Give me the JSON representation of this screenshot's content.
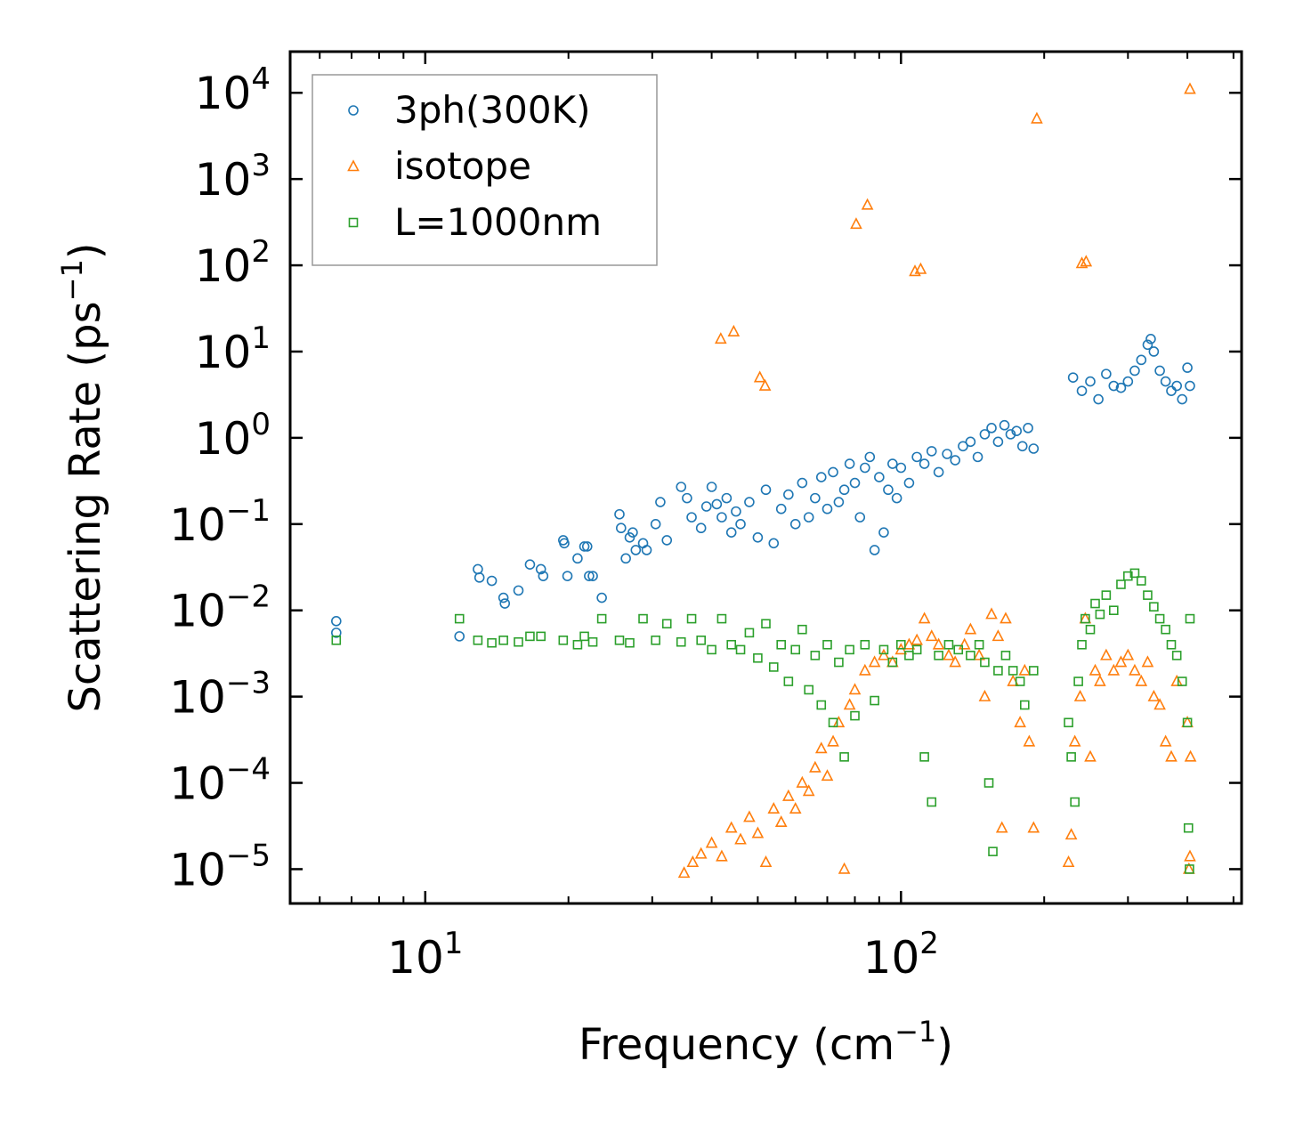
{
  "chart_data": {
    "type": "scatter",
    "title": "",
    "xlabel": {
      "text": "Frequency (cm",
      "sup": "−1",
      "close": ")"
    },
    "ylabel": {
      "text": "Scattering Rate (ps",
      "sup": "−1",
      "close": ")"
    },
    "xscale": "log",
    "yscale": "log",
    "xlim": [
      5.2,
      520
    ],
    "ylim": [
      4e-06,
      30000.0
    ],
    "x_ticks": [
      {
        "base": "10",
        "exp": "1",
        "value": 10
      },
      {
        "base": "10",
        "exp": "2",
        "value": 100
      }
    ],
    "y_ticks": [
      {
        "base": "10",
        "exp": "−5",
        "value": 1e-05
      },
      {
        "base": "10",
        "exp": "−4",
        "value": 0.0001
      },
      {
        "base": "10",
        "exp": "−3",
        "value": 0.001
      },
      {
        "base": "10",
        "exp": "−2",
        "value": 0.01
      },
      {
        "base": "10",
        "exp": "−1",
        "value": 0.1
      },
      {
        "base": "10",
        "exp": "0",
        "value": 1
      },
      {
        "base": "10",
        "exp": "1",
        "value": 10
      },
      {
        "base": "10",
        "exp": "2",
        "value": 100
      },
      {
        "base": "10",
        "exp": "3",
        "value": 1000
      },
      {
        "base": "10",
        "exp": "4",
        "value": 10000
      }
    ],
    "legend_position": "top-left",
    "series": [
      {
        "name": "3ph(300K)",
        "marker": "circle",
        "color": "#1f77b4",
        "points": [
          [
            6.5,
            0.0075
          ],
          [
            6.5,
            0.0055
          ],
          [
            11.8,
            0.005
          ],
          [
            12.9,
            0.03
          ],
          [
            13.0,
            0.024
          ],
          [
            13.8,
            0.022
          ],
          [
            14.6,
            0.014
          ],
          [
            14.7,
            0.012
          ],
          [
            15.7,
            0.017
          ],
          [
            16.6,
            0.034
          ],
          [
            17.5,
            0.03
          ],
          [
            17.7,
            0.025
          ],
          [
            19.5,
            0.065
          ],
          [
            19.6,
            0.06
          ],
          [
            19.9,
            0.025
          ],
          [
            20.9,
            0.04
          ],
          [
            21.6,
            0.055
          ],
          [
            21.9,
            0.055
          ],
          [
            22.1,
            0.025
          ],
          [
            22.5,
            0.025
          ],
          [
            23.5,
            0.014
          ],
          [
            25.6,
            0.13
          ],
          [
            25.8,
            0.09
          ],
          [
            26.4,
            0.04
          ],
          [
            26.9,
            0.07
          ],
          [
            27.3,
            0.08
          ],
          [
            27.7,
            0.05
          ],
          [
            28.7,
            0.06
          ],
          [
            29.2,
            0.05
          ],
          [
            30.5,
            0.1
          ],
          [
            31.2,
            0.18
          ],
          [
            32.2,
            0.065
          ],
          [
            34.5,
            0.27
          ],
          [
            35.5,
            0.2
          ],
          [
            36.3,
            0.12
          ],
          [
            38.0,
            0.09
          ],
          [
            39.0,
            0.16
          ],
          [
            40.0,
            0.27
          ],
          [
            41.0,
            0.17
          ],
          [
            42.0,
            0.12
          ],
          [
            43.0,
            0.2
          ],
          [
            44.0,
            0.08
          ],
          [
            45.0,
            0.14
          ],
          [
            46.0,
            0.1
          ],
          [
            48.0,
            0.18
          ],
          [
            50.0,
            0.07
          ],
          [
            52.0,
            0.25
          ],
          [
            54.0,
            0.06
          ],
          [
            56.0,
            0.15
          ],
          [
            58.0,
            0.22
          ],
          [
            60.0,
            0.1
          ],
          [
            62.0,
            0.3
          ],
          [
            64.0,
            0.12
          ],
          [
            66.0,
            0.2
          ],
          [
            68.0,
            0.35
          ],
          [
            70.0,
            0.15
          ],
          [
            72.0,
            0.4
          ],
          [
            74.0,
            0.18
          ],
          [
            76.0,
            0.25
          ],
          [
            78.0,
            0.5
          ],
          [
            80.0,
            0.3
          ],
          [
            82.0,
            0.12
          ],
          [
            84.0,
            0.45
          ],
          [
            86.0,
            0.6
          ],
          [
            88.0,
            0.05
          ],
          [
            90.0,
            0.35
          ],
          [
            92.0,
            0.08
          ],
          [
            94.0,
            0.25
          ],
          [
            96.0,
            0.5
          ],
          [
            98.0,
            0.2
          ],
          [
            100.0,
            0.45
          ],
          [
            104.0,
            0.3
          ],
          [
            108.0,
            0.6
          ],
          [
            112.0,
            0.5
          ],
          [
            116.0,
            0.7
          ],
          [
            120.0,
            0.4
          ],
          [
            125.0,
            0.65
          ],
          [
            130.0,
            0.55
          ],
          [
            135.0,
            0.8
          ],
          [
            140.0,
            0.9
          ],
          [
            145.0,
            0.6
          ],
          [
            150.0,
            1.1
          ],
          [
            155.0,
            1.3
          ],
          [
            160.0,
            0.9
          ],
          [
            165.0,
            1.4
          ],
          [
            170.0,
            1.1
          ],
          [
            175.0,
            1.2
          ],
          [
            180.0,
            0.8
          ],
          [
            185.0,
            1.3
          ],
          [
            190.0,
            0.75
          ],
          [
            230.0,
            5.0
          ],
          [
            240.0,
            3.5
          ],
          [
            250.0,
            4.5
          ],
          [
            260.0,
            2.8
          ],
          [
            270.0,
            5.5
          ],
          [
            280.0,
            4.0
          ],
          [
            290.0,
            3.8
          ],
          [
            300.0,
            4.5
          ],
          [
            310.0,
            6.0
          ],
          [
            320.0,
            8.0
          ],
          [
            330.0,
            12.0
          ],
          [
            335.0,
            14.0
          ],
          [
            340.0,
            10.0
          ],
          [
            350.0,
            6.0
          ],
          [
            360.0,
            4.5
          ],
          [
            370.0,
            3.5
          ],
          [
            380.0,
            4.0
          ],
          [
            390.0,
            2.8
          ],
          [
            400.0,
            6.5
          ],
          [
            405.0,
            4.0
          ]
        ]
      },
      {
        "name": "isotope",
        "marker": "triangle",
        "color": "#ff7f0e",
        "points": [
          [
            41.8,
            14
          ],
          [
            44.5,
            17
          ],
          [
            50.5,
            5
          ],
          [
            51.8,
            4
          ],
          [
            80.5,
            300
          ],
          [
            85.0,
            500
          ],
          [
            107.0,
            85
          ],
          [
            110.0,
            90
          ],
          [
            193.0,
            5000
          ],
          [
            240.0,
            105
          ],
          [
            245.0,
            110
          ],
          [
            405.0,
            11000
          ],
          [
            35.0,
            9e-06
          ],
          [
            36.5,
            1.2e-05
          ],
          [
            38.0,
            1.5e-05
          ],
          [
            40.0,
            2e-05
          ],
          [
            42.0,
            1.4e-05
          ],
          [
            44.0,
            3e-05
          ],
          [
            46.0,
            2.2e-05
          ],
          [
            48.0,
            4e-05
          ],
          [
            50.0,
            2.6e-05
          ],
          [
            52.0,
            1.2e-05
          ],
          [
            54.0,
            5e-05
          ],
          [
            56.0,
            3.5e-05
          ],
          [
            58.0,
            7e-05
          ],
          [
            60.0,
            5e-05
          ],
          [
            62.0,
            0.0001
          ],
          [
            64.0,
            8e-05
          ],
          [
            66.0,
            0.00015
          ],
          [
            68.0,
            0.00025
          ],
          [
            70.0,
            0.00012
          ],
          [
            72.0,
            0.0003
          ],
          [
            74.0,
            0.0005
          ],
          [
            76.0,
            1e-05
          ],
          [
            78.0,
            0.0008
          ],
          [
            80.0,
            0.0012
          ],
          [
            84.0,
            0.002
          ],
          [
            88.0,
            0.0025
          ],
          [
            92.0,
            0.003
          ],
          [
            96.0,
            0.0025
          ],
          [
            100.0,
            0.0035
          ],
          [
            104.0,
            0.004
          ],
          [
            108.0,
            0.0045
          ],
          [
            112.0,
            0.008
          ],
          [
            116.0,
            0.005
          ],
          [
            120.0,
            0.004
          ],
          [
            126.0,
            0.003
          ],
          [
            130.0,
            0.0025
          ],
          [
            136.0,
            0.004
          ],
          [
            140.0,
            0.006
          ],
          [
            146.0,
            0.003
          ],
          [
            150.0,
            0.001
          ],
          [
            155.0,
            0.009
          ],
          [
            160.0,
            0.005
          ],
          [
            163.0,
            3e-05
          ],
          [
            166.0,
            0.008
          ],
          [
            172.0,
            0.0015
          ],
          [
            178.0,
            0.0005
          ],
          [
            182.0,
            0.002
          ],
          [
            186.0,
            0.0003
          ],
          [
            190.0,
            3e-05
          ],
          [
            225.0,
            1.2e-05
          ],
          [
            228.0,
            2.5e-05
          ],
          [
            232.0,
            0.0003
          ],
          [
            238.0,
            0.001
          ],
          [
            244.0,
            0.008
          ],
          [
            250.0,
            0.0002
          ],
          [
            256.0,
            0.002
          ],
          [
            262.0,
            0.0015
          ],
          [
            270.0,
            0.003
          ],
          [
            280.0,
            0.002
          ],
          [
            290.0,
            0.0025
          ],
          [
            300.0,
            0.003
          ],
          [
            310.0,
            0.002
          ],
          [
            320.0,
            0.0015
          ],
          [
            330.0,
            0.0025
          ],
          [
            340.0,
            0.001
          ],
          [
            350.0,
            0.0008
          ],
          [
            360.0,
            0.0003
          ],
          [
            370.0,
            0.0002
          ],
          [
            380.0,
            0.0015
          ],
          [
            400.0,
            0.0005
          ],
          [
            403.0,
            1e-05
          ],
          [
            405.0,
            1.4e-05
          ],
          [
            406.0,
            0.0002
          ]
        ]
      },
      {
        "name": "L=1000nm",
        "marker": "square",
        "color": "#2ca02c",
        "points": [
          [
            6.5,
            0.0045
          ],
          [
            11.8,
            0.008
          ],
          [
            12.9,
            0.0045
          ],
          [
            13.8,
            0.0042
          ],
          [
            14.6,
            0.0045
          ],
          [
            15.7,
            0.0043
          ],
          [
            16.6,
            0.005
          ],
          [
            17.5,
            0.005
          ],
          [
            19.5,
            0.0045
          ],
          [
            20.9,
            0.004
          ],
          [
            21.6,
            0.005
          ],
          [
            22.5,
            0.0043
          ],
          [
            23.5,
            0.008
          ],
          [
            25.6,
            0.0045
          ],
          [
            26.9,
            0.0042
          ],
          [
            28.7,
            0.008
          ],
          [
            30.5,
            0.0045
          ],
          [
            32.2,
            0.007
          ],
          [
            34.5,
            0.0043
          ],
          [
            36.3,
            0.008
          ],
          [
            38.0,
            0.0045
          ],
          [
            40.0,
            0.0035
          ],
          [
            42.0,
            0.008
          ],
          [
            44.0,
            0.004
          ],
          [
            46.0,
            0.0035
          ],
          [
            48.0,
            0.0055
          ],
          [
            50.0,
            0.0028
          ],
          [
            52.0,
            0.007
          ],
          [
            54.0,
            0.0022
          ],
          [
            56.0,
            0.004
          ],
          [
            58.0,
            0.0015
          ],
          [
            60.0,
            0.0035
          ],
          [
            62.0,
            0.006
          ],
          [
            64.0,
            0.0012
          ],
          [
            66.0,
            0.003
          ],
          [
            68.0,
            0.0008
          ],
          [
            70.0,
            0.004
          ],
          [
            72.0,
            0.0005
          ],
          [
            74.0,
            0.0025
          ],
          [
            76.0,
            0.0002
          ],
          [
            78.0,
            0.0035
          ],
          [
            80.0,
            0.0006
          ],
          [
            84.0,
            0.004
          ],
          [
            88.0,
            0.0009
          ],
          [
            92.0,
            0.0035
          ],
          [
            96.0,
            0.0025
          ],
          [
            100.0,
            0.004
          ],
          [
            104.0,
            0.003
          ],
          [
            108.0,
            0.0035
          ],
          [
            112.0,
            0.0002
          ],
          [
            116.0,
            6e-05
          ],
          [
            120.0,
            0.003
          ],
          [
            126.0,
            0.004
          ],
          [
            132.0,
            0.0035
          ],
          [
            140.0,
            0.003
          ],
          [
            146.0,
            0.004
          ],
          [
            150.0,
            0.0025
          ],
          [
            153.0,
            0.0001
          ],
          [
            156.0,
            1.6e-05
          ],
          [
            160.0,
            0.002
          ],
          [
            166.0,
            0.003
          ],
          [
            172.0,
            0.002
          ],
          [
            178.0,
            0.0015
          ],
          [
            182.0,
            0.0008
          ],
          [
            190.0,
            0.002
          ],
          [
            225.0,
            0.0005
          ],
          [
            228.0,
            0.0002
          ],
          [
            232.0,
            6e-05
          ],
          [
            236.0,
            0.0015
          ],
          [
            240.0,
            0.004
          ],
          [
            244.0,
            0.008
          ],
          [
            250.0,
            0.006
          ],
          [
            256.0,
            0.012
          ],
          [
            262.0,
            0.009
          ],
          [
            270.0,
            0.015
          ],
          [
            280.0,
            0.01
          ],
          [
            290.0,
            0.02
          ],
          [
            300.0,
            0.025
          ],
          [
            310.0,
            0.027
          ],
          [
            320.0,
            0.022
          ],
          [
            330.0,
            0.015
          ],
          [
            340.0,
            0.011
          ],
          [
            350.0,
            0.008
          ],
          [
            360.0,
            0.006
          ],
          [
            370.0,
            0.004
          ],
          [
            380.0,
            0.003
          ],
          [
            390.0,
            0.0015
          ],
          [
            400.0,
            0.0005
          ],
          [
            402.0,
            3e-05
          ],
          [
            404.0,
            1e-05
          ],
          [
            405.0,
            0.008
          ]
        ]
      }
    ]
  }
}
